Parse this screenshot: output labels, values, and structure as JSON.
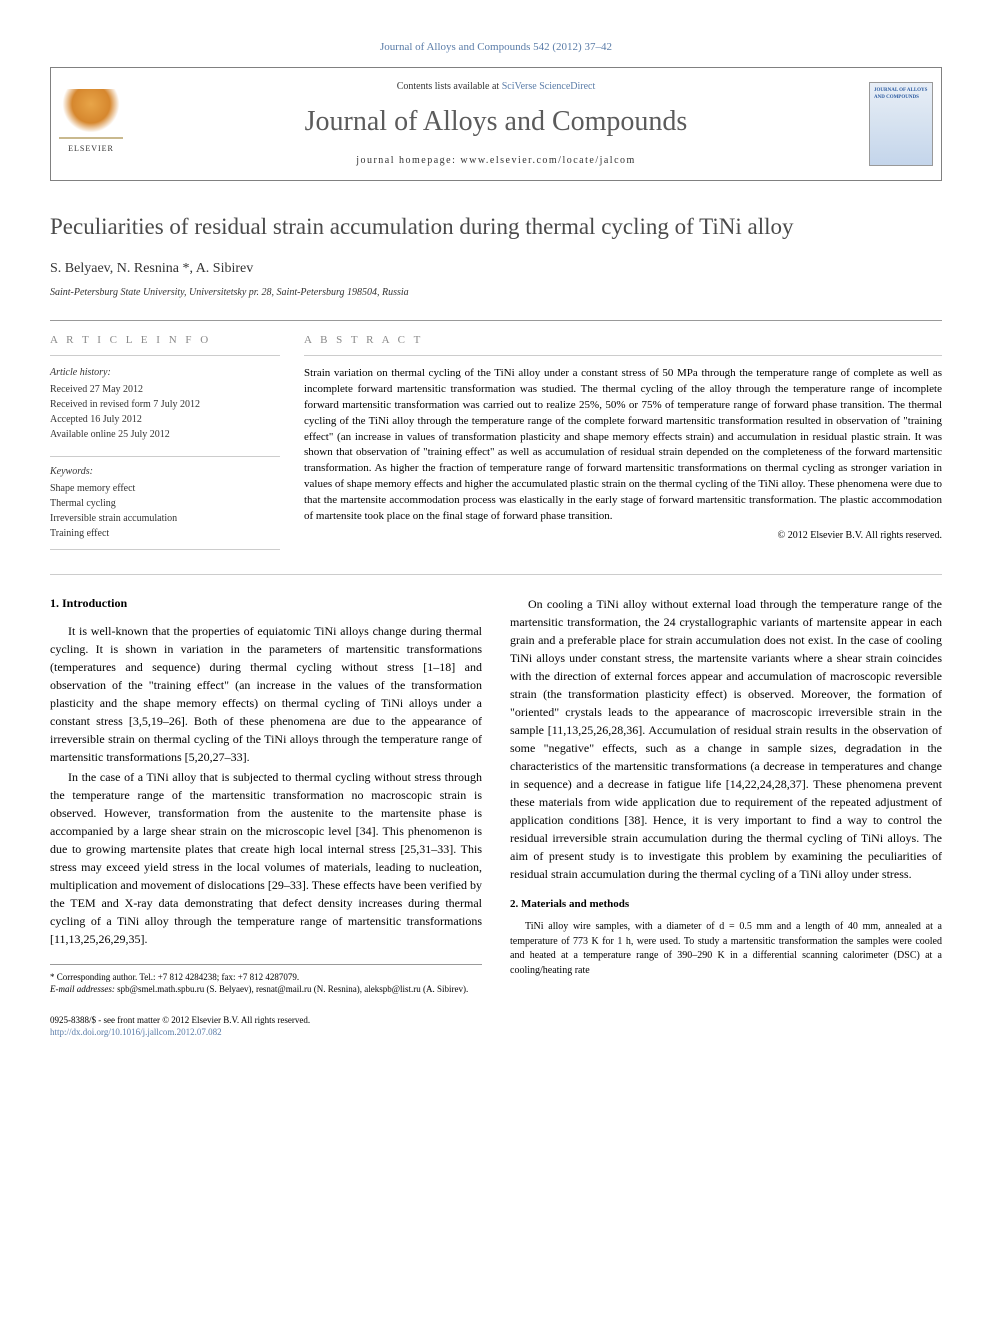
{
  "journal_ref": "Journal of Alloys and Compounds 542 (2012) 37–42",
  "header": {
    "contents_prefix": "Contents lists available at ",
    "contents_link": "SciVerse ScienceDirect",
    "journal_name": "Journal of Alloys and Compounds",
    "homepage_prefix": "journal homepage: ",
    "homepage_url": "www.elsevier.com/locate/jalcom",
    "publisher_logo_text": "ELSEVIER",
    "cover_title": "JOURNAL OF ALLOYS AND COMPOUNDS"
  },
  "title": "Peculiarities of residual strain accumulation during thermal cycling of TiNi alloy",
  "authors": "S. Belyaev, N. Resnina *, A. Sibirev",
  "affiliation": "Saint-Petersburg State University, Universitetsky pr. 28, Saint-Petersburg 198504, Russia",
  "info": {
    "label": "A R T I C L E   I N F O",
    "history_label": "Article history:",
    "history": {
      "received": "Received 27 May 2012",
      "revised": "Received in revised form 7 July 2012",
      "accepted": "Accepted 16 July 2012",
      "online": "Available online 25 July 2012"
    },
    "keywords_label": "Keywords:",
    "keywords": [
      "Shape memory effect",
      "Thermal cycling",
      "Irreversible strain accumulation",
      "Training effect"
    ]
  },
  "abstract": {
    "label": "A B S T R A C T",
    "text": "Strain variation on thermal cycling of the TiNi alloy under a constant stress of 50 MPa through the temperature range of complete as well as incomplete forward martensitic transformation was studied. The thermal cycling of the alloy through the temperature range of incomplete forward martensitic transformation was carried out to realize 25%, 50% or 75% of temperature range of forward phase transition. The thermal cycling of the TiNi alloy through the temperature range of the complete forward martensitic transformation resulted in observation of \"training effect\" (an increase in values of transformation plasticity and shape memory effects strain) and accumulation in residual plastic strain. It was shown that observation of \"training effect\" as well as accumulation of residual strain depended on the completeness of the forward martensitic transformation. As higher the fraction of temperature range of forward martensitic transformations on thermal cycling as stronger variation in values of shape memory effects and higher the accumulated plastic strain on the thermal cycling of the TiNi alloy. These phenomena were due to that the martensite accommodation process was elastically in the early stage of forward martensitic transformation. The plastic accommodation of martensite took place on the final stage of forward phase transition.",
    "copyright": "© 2012 Elsevier B.V. All rights reserved."
  },
  "body": {
    "col1": {
      "heading": "1. Introduction",
      "p1": "It is well-known that the properties of equiatomic TiNi alloys change during thermal cycling. It is shown in variation in the parameters of martensitic transformations (temperatures and sequence) during thermal cycling without stress [1–18] and observation of the \"training effect\" (an increase in the values of the transformation plasticity and the shape memory effects) on thermal cycling of TiNi alloys under a constant stress [3,5,19–26]. Both of these phenomena are due to the appearance of irreversible strain on thermal cycling of the TiNi alloys through the temperature range of martensitic transformations [5,20,27–33].",
      "p2": "In the case of a TiNi alloy that is subjected to thermal cycling without stress through the temperature range of the martensitic transformation no macroscopic strain is observed. However, transformation from the austenite to the martensite phase is accompanied by a large shear strain on the microscopic level [34]. This phenomenon is due to growing martensite plates that create high local internal stress [25,31–33]. This stress may exceed yield stress in the local volumes of materials, leading to nucleation, multiplication and movement of dislocations [29–33]. These effects have been verified by the TEM and X-ray data demonstrating that defect density increases during thermal cycling of a TiNi alloy through the temperature range of martensitic transformations [11,13,25,26,29,35]."
    },
    "col2": {
      "p1": "On cooling a TiNi alloy without external load through the temperature range of the martensitic transformation, the 24 crystallographic variants of martensite appear in each grain and a preferable place for strain accumulation does not exist. In the case of cooling TiNi alloys under constant stress, the martensite variants where a shear strain coincides with the direction of external forces appear and accumulation of macroscopic reversible strain (the transformation plasticity effect) is observed. Moreover, the formation of \"oriented\" crystals leads to the appearance of macroscopic irreversible strain in the sample [11,13,25,26,28,36]. Accumulation of residual strain results in the observation of some \"negative\" effects, such as a change in sample sizes, degradation in the characteristics of the martensitic transformations (a decrease in temperatures and change in sequence) and a decrease in fatigue life [14,22,24,28,37]. These phenomena prevent these materials from wide application due to requirement of the repeated adjustment of application conditions [38]. Hence, it is very important to find a way to control the residual irreversible strain accumulation during the thermal cycling of TiNi alloys. The aim of present study is to investigate this problem by examining the peculiarities of residual strain accumulation during the thermal cycling of a TiNi alloy under stress.",
      "heading2": "2. Materials and methods",
      "p2": "TiNi alloy wire samples, with a diameter of d = 0.5 mm and a length of 40 mm, annealed at a temperature of 773 K for 1 h, were used. To study a martensitic transformation the samples were cooled and heated at a temperature range of 390–290 K in a differential scanning calorimeter (DSC) at a cooling/heating rate"
    }
  },
  "footnotes": {
    "corr": "* Corresponding author. Tel.: +7 812 4284238; fax: +7 812 4287079.",
    "email_label": "E-mail addresses: ",
    "emails": "spb@smel.math.spbu.ru (S. Belyaev), resnat@mail.ru (N. Resnina), alekspb@list.ru (A. Sibirev)."
  },
  "bottom": {
    "issn": "0925-8388/$ - see front matter © 2012 Elsevier B.V. All rights reserved.",
    "doi": "http://dx.doi.org/10.1016/j.jallcom.2012.07.082"
  },
  "colors": {
    "link": "#5a7ca8",
    "text": "#000000",
    "gray": "#888888",
    "border": "#999999"
  }
}
